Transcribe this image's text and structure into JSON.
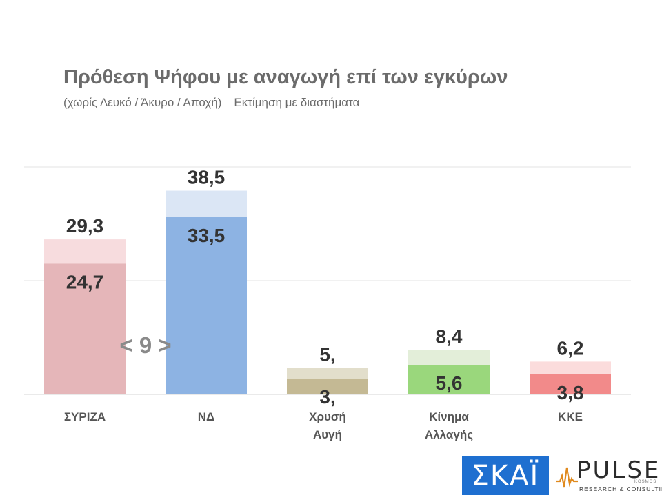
{
  "title": "Πρόθεση Ψήφου με αναγωγή επί των εγκύρων",
  "subtitle_left": "(χωρίς Λευκό / Άκυρο / Αποχή)",
  "subtitle_right": "Εκτίμηση με διαστήματα",
  "chart_data": {
    "type": "bar",
    "categories": [
      [
        "ΣΥΡΙΖΑ"
      ],
      [
        "ΝΔ"
      ],
      [
        "Χρυσή",
        "Αυγή"
      ],
      [
        "Κίνημα",
        "Αλλαγής"
      ],
      [
        "ΚΚΕ"
      ]
    ],
    "lower_values": [
      24.7,
      33.5,
      3.0,
      5.6,
      3.8
    ],
    "upper_values": [
      29.3,
      38.5,
      5.0,
      8.4,
      6.2
    ],
    "lower_labels": [
      "24,7",
      "33,5",
      "3,",
      "5,6",
      "3,8"
    ],
    "upper_labels": [
      "29,3",
      "38,5",
      "5,",
      "8,4",
      "6,2"
    ],
    "colors": {
      "lower": [
        "#e5b6b9",
        "#8db3e3",
        "#c4b994",
        "#9ad77c",
        "#f28a8a"
      ],
      "upper": [
        "#f7dcde",
        "#dbe6f5",
        "#e2decb",
        "#e3eed9",
        "#fbdcdc"
      ]
    },
    "annotation": "< 9 >",
    "ylim": [
      0,
      43
    ],
    "grid": true
  },
  "logos": {
    "skai": "ΣΚΑΪ",
    "pulse": "PULSE",
    "pulse_sub": "RESEARCH & CONSULTING",
    "pulse_kosmos": "KOSMOS"
  }
}
